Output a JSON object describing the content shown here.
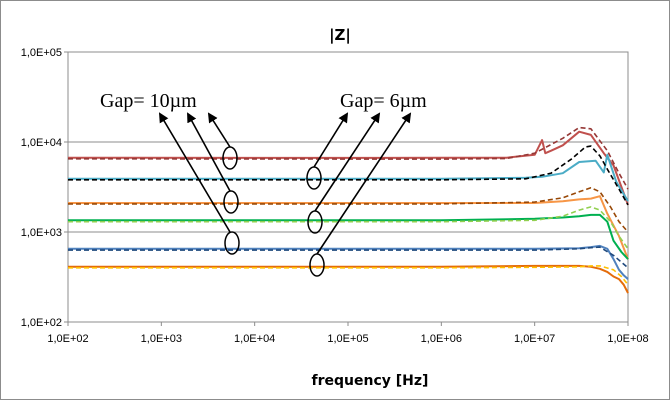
{
  "chart_data": {
    "type": "line",
    "title": "|Z|",
    "xlabel": "frequency [Hz]",
    "ylabel": "",
    "xscale": "log",
    "yscale": "log",
    "xlim": [
      100,
      100000000
    ],
    "ylim": [
      100,
      100000
    ],
    "grid": "horizontal major gridlines",
    "xticks": [
      "1,0E+02",
      "1,0E+03",
      "1,0E+04",
      "1,0E+05",
      "1,0E+06",
      "1,0E+07",
      "1,0E+08"
    ],
    "yticks": [
      "1,0E+02",
      "1,0E+03",
      "1,0E+04",
      "1,0E+05"
    ],
    "annotations": [
      {
        "text": "Gap= 10µm"
      },
      {
        "text": "Gap= 6µm"
      }
    ],
    "series": [
      {
        "color": "#c0504d",
        "style": "solid",
        "x": [
          100,
          100000,
          1000000,
          5000000,
          10000000,
          12000000,
          13000000,
          15000000,
          20000000,
          30000000,
          40000000,
          55000000,
          70000000,
          100000000
        ],
        "y": [
          6700,
          6650,
          6700,
          6700,
          7200,
          10500,
          7500,
          8000,
          9200,
          13000,
          12000,
          7500,
          5500,
          2000
        ]
      },
      {
        "color": "#953735",
        "style": "dashed",
        "x": [
          100,
          1000000,
          5000000,
          10000000,
          20000000,
          30000000,
          40000000,
          60000000,
          80000000,
          100000000
        ],
        "y": [
          6500,
          6450,
          6550,
          7500,
          11000,
          14500,
          14000,
          8000,
          4500,
          3000
        ]
      },
      {
        "color": "#4bacc6",
        "style": "solid",
        "x": [
          100,
          1000000,
          8000000,
          12000000,
          20000000,
          30000000,
          45000000,
          55000000,
          60000000,
          75000000,
          100000000
        ],
        "y": [
          3900,
          3900,
          4000,
          4100,
          4500,
          6000,
          6200,
          4600,
          7200,
          3600,
          2200
        ]
      },
      {
        "color": "#000000",
        "style": "dashed",
        "x": [
          100,
          1000000,
          8000000,
          15000000,
          25000000,
          35000000,
          40000000,
          50000000,
          60000000,
          80000000,
          100000000
        ],
        "y": [
          3800,
          3800,
          3900,
          4500,
          6500,
          8800,
          9000,
          7000,
          5000,
          3000,
          2000
        ]
      },
      {
        "color": "#f79646",
        "style": "solid",
        "x": [
          100,
          1000000,
          10000000,
          20000000,
          30000000,
          40000000,
          50000000,
          60000000,
          80000000,
          100000000
        ],
        "y": [
          2100,
          2100,
          2100,
          2200,
          2300,
          2350,
          2500,
          1600,
          900,
          500
        ]
      },
      {
        "color": "#984807",
        "style": "dashed",
        "x": [
          100,
          1000000,
          10000000,
          20000000,
          30000000,
          40000000,
          50000000,
          65000000,
          80000000,
          100000000
        ],
        "y": [
          2050,
          2050,
          2150,
          2400,
          2800,
          3100,
          2800,
          1900,
          1300,
          1000
        ]
      },
      {
        "color": "#00b050",
        "style": "solid",
        "x": [
          100,
          1000000,
          10000000,
          20000000,
          30000000,
          40000000,
          50000000,
          60000000,
          70000000,
          85000000,
          100000000
        ],
        "y": [
          1350,
          1350,
          1400,
          1450,
          1500,
          1550,
          1550,
          1300,
          800,
          600,
          500
        ]
      },
      {
        "color": "#92d050",
        "style": "dashed",
        "x": [
          100,
          1000000,
          10000000,
          20000000,
          30000000,
          40000000,
          50000000,
          65000000,
          80000000,
          100000000
        ],
        "y": [
          1300,
          1300,
          1350,
          1500,
          1750,
          1900,
          1750,
          1300,
          900,
          650
        ]
      },
      {
        "color": "#4f81bd",
        "style": "solid",
        "x": [
          100,
          1000000,
          10000000,
          30000000,
          40000000,
          50000000,
          60000000,
          70000000,
          80000000,
          90000000,
          100000000
        ],
        "y": [
          650,
          650,
          650,
          660,
          680,
          700,
          650,
          500,
          380,
          330,
          300
        ]
      },
      {
        "color": "#1f497d",
        "style": "dashed",
        "x": [
          100,
          1000000,
          10000000,
          30000000,
          40000000,
          50000000,
          70000000,
          100000000
        ],
        "y": [
          630,
          630,
          630,
          650,
          670,
          680,
          550,
          400
        ]
      },
      {
        "color": "#e46c0a",
        "style": "solid",
        "x": [
          100,
          1000000,
          10000000,
          30000000,
          40000000,
          50000000,
          60000000,
          70000000,
          80000000,
          90000000,
          100000000
        ],
        "y": [
          410,
          410,
          420,
          420,
          410,
          390,
          360,
          320,
          300,
          260,
          210
        ]
      },
      {
        "color": "#ffc000",
        "style": "dashed",
        "x": [
          100,
          1000000,
          10000000,
          30000000,
          40000000,
          50000000,
          70000000,
          85000000,
          100000000
        ],
        "y": [
          400,
          400,
          405,
          410,
          420,
          420,
          380,
          320,
          260
        ]
      }
    ]
  }
}
